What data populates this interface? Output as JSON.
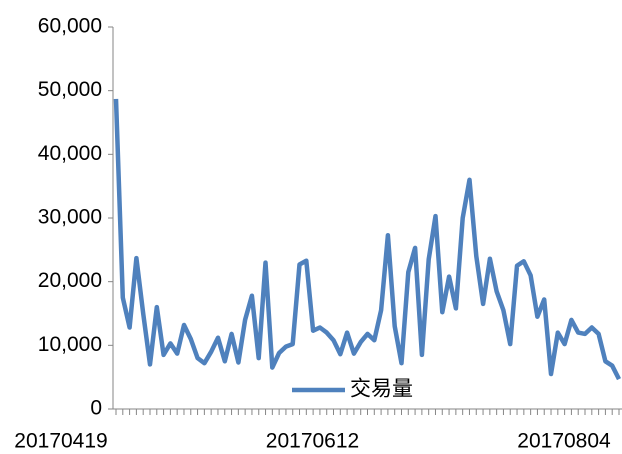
{
  "chart_data": {
    "type": "line",
    "categories": [
      "20170419",
      null,
      null,
      null,
      null,
      null,
      null,
      null,
      null,
      null,
      null,
      null,
      null,
      null,
      null,
      null,
      null,
      null,
      null,
      null,
      null,
      null,
      null,
      null,
      null,
      null,
      null,
      null,
      null,
      null,
      null,
      null,
      null,
      null,
      null,
      null,
      null,
      "20170612",
      null,
      null,
      null,
      null,
      null,
      null,
      null,
      null,
      null,
      null,
      null,
      null,
      null,
      null,
      null,
      null,
      null,
      null,
      null,
      null,
      null,
      null,
      null,
      null,
      null,
      null,
      null,
      null,
      null,
      null,
      null,
      null,
      null,
      null,
      null,
      null,
      "20170804"
    ],
    "series": [
      {
        "name": "交易量",
        "color": "#4f81bd",
        "values": [
          48700,
          17500,
          12800,
          23700,
          15000,
          7000,
          16000,
          8500,
          10300,
          8700,
          13200,
          11000,
          8000,
          7200,
          9000,
          11200,
          7500,
          11800,
          7300,
          14000,
          17800,
          8000,
          23000,
          6500,
          8800,
          9800,
          10200,
          22700,
          23300,
          12300,
          12800,
          12000,
          10800,
          8600,
          12000,
          8700,
          10500,
          11800,
          10800,
          15500,
          27300,
          13000,
          7200,
          21500,
          25300,
          8500,
          23500,
          30300,
          15200,
          20800,
          15800,
          30000,
          36000,
          24000,
          16500,
          23600,
          18500,
          15500,
          10200,
          22500,
          23200,
          21000,
          14500,
          17200,
          5500,
          12000,
          10200,
          14000,
          12000,
          11800,
          12800,
          11800,
          7500,
          6800,
          4700
        ]
      }
    ],
    "ylim": [
      0,
      60000
    ],
    "yticks": [
      0,
      {
        "value": 10000,
        "label": "10,000"
      },
      {
        "value": 20000,
        "label": "20,000"
      },
      {
        "value": 30000,
        "label": "30,000"
      },
      {
        "value": 40000,
        "label": "40,000"
      },
      {
        "value": 50000,
        "label": "50,000"
      },
      {
        "value": 60000,
        "label": "60,000"
      }
    ],
    "grid": false
  }
}
